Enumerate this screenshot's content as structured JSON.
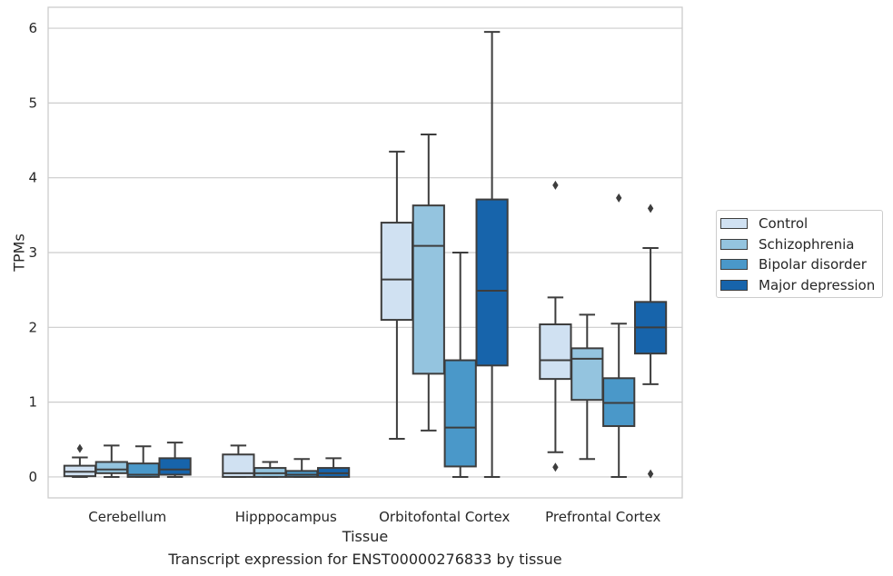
{
  "caption": "Transcript expression for ENST00000276833 by tissue",
  "chart_data": {
    "type": "boxplot",
    "title": "",
    "xlabel": "Tissue",
    "ylabel": "TPMs",
    "ylim": [
      -0.28,
      6.28
    ],
    "yticks": [
      0,
      1,
      2,
      3,
      4,
      5,
      6
    ],
    "categories": [
      "Cerebellum",
      "Hipppocampus",
      "Orbitofontal Cortex",
      "Prefrontal Cortex"
    ],
    "grid": "horizontal",
    "legend_position": "right",
    "series": [
      {
        "name": "Control",
        "color": "#d0e1f2",
        "boxes": [
          {
            "whislo": 0.0,
            "q1": 0.01,
            "med": 0.07,
            "q3": 0.15,
            "whishi": 0.26,
            "fliers": [
              0.38
            ]
          },
          {
            "whislo": 0.0,
            "q1": 0.0,
            "med": 0.05,
            "q3": 0.3,
            "whishi": 0.42,
            "fliers": []
          },
          {
            "whislo": 0.51,
            "q1": 2.1,
            "med": 2.64,
            "q3": 3.4,
            "whishi": 4.35,
            "fliers": []
          },
          {
            "whislo": 0.33,
            "q1": 1.31,
            "med": 1.56,
            "q3": 2.04,
            "whishi": 2.4,
            "fliers": [
              3.9,
              0.13
            ]
          }
        ]
      },
      {
        "name": "Schizophrenia",
        "color": "#94c4df",
        "boxes": [
          {
            "whislo": 0.0,
            "q1": 0.05,
            "med": 0.1,
            "q3": 0.2,
            "whishi": 0.42,
            "fliers": []
          },
          {
            "whislo": 0.0,
            "q1": 0.0,
            "med": 0.05,
            "q3": 0.12,
            "whishi": 0.2,
            "fliers": []
          },
          {
            "whislo": 0.62,
            "q1": 1.38,
            "med": 3.09,
            "q3": 3.63,
            "whishi": 4.58,
            "fliers": []
          },
          {
            "whislo": 0.24,
            "q1": 1.03,
            "med": 1.58,
            "q3": 1.72,
            "whishi": 2.17,
            "fliers": []
          }
        ]
      },
      {
        "name": "Bipolar disorder",
        "color": "#4a98c9",
        "boxes": [
          {
            "whislo": 0.0,
            "q1": 0.0,
            "med": 0.03,
            "q3": 0.18,
            "whishi": 0.41,
            "fliers": []
          },
          {
            "whislo": 0.0,
            "q1": 0.0,
            "med": 0.03,
            "q3": 0.08,
            "whishi": 0.24,
            "fliers": []
          },
          {
            "whislo": 0.0,
            "q1": 0.14,
            "med": 0.66,
            "q3": 1.56,
            "whishi": 3.0,
            "fliers": []
          },
          {
            "whislo": 0.0,
            "q1": 0.68,
            "med": 0.99,
            "q3": 1.32,
            "whishi": 2.05,
            "fliers": [
              3.73
            ]
          }
        ]
      },
      {
        "name": "Major depression",
        "color": "#1764ab",
        "boxes": [
          {
            "whislo": 0.0,
            "q1": 0.03,
            "med": 0.1,
            "q3": 0.25,
            "whishi": 0.46,
            "fliers": []
          },
          {
            "whislo": 0.0,
            "q1": 0.0,
            "med": 0.05,
            "q3": 0.12,
            "whishi": 0.25,
            "fliers": []
          },
          {
            "whislo": 0.0,
            "q1": 1.49,
            "med": 2.49,
            "q3": 3.71,
            "whishi": 5.95,
            "fliers": []
          },
          {
            "whislo": 1.24,
            "q1": 1.65,
            "med": 2.0,
            "q3": 2.34,
            "whishi": 3.06,
            "fliers": [
              3.59,
              0.04
            ]
          }
        ]
      }
    ]
  }
}
